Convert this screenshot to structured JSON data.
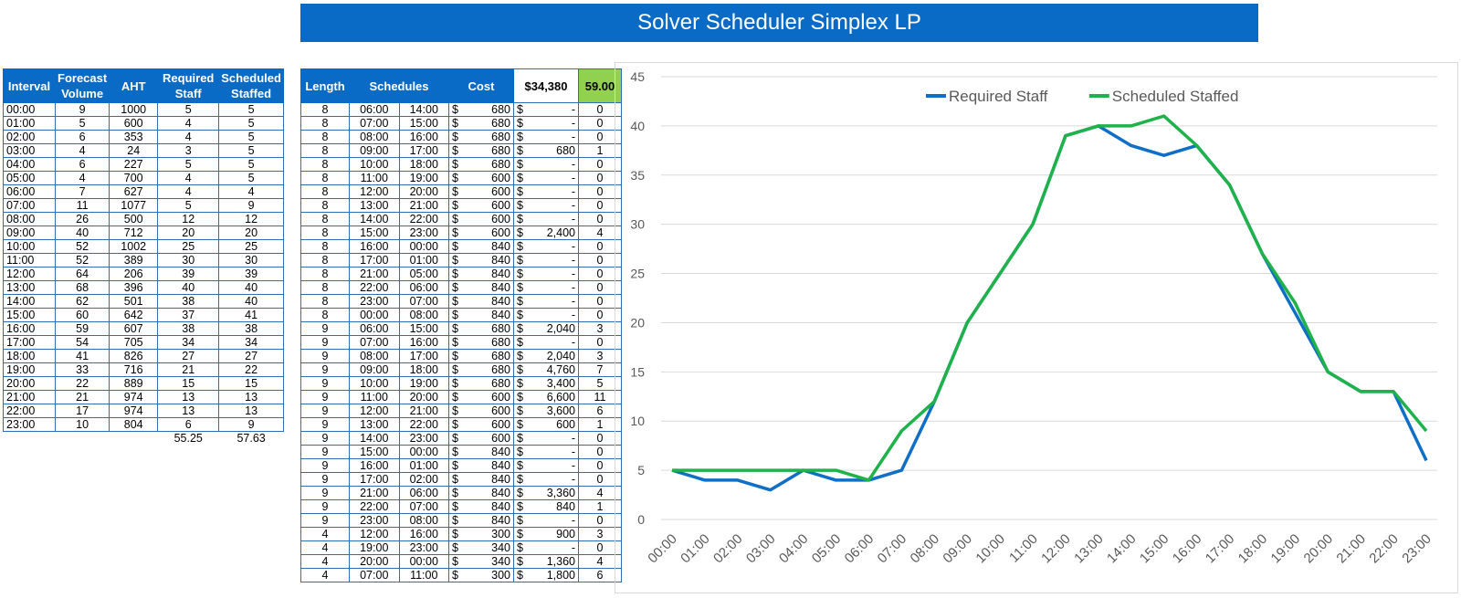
{
  "title": "Solver Scheduler Simplex LP",
  "interval_table": {
    "headers": {
      "interval": "Interval",
      "forecast": "Forecast Volume",
      "aht": "AHT",
      "required": "Required Staff",
      "scheduled": "Scheduled Staffed"
    },
    "rows": [
      [
        "00:00",
        "9",
        "1000",
        "5",
        "5"
      ],
      [
        "01:00",
        "5",
        "600",
        "4",
        "5"
      ],
      [
        "02:00",
        "6",
        "353",
        "4",
        "5"
      ],
      [
        "03:00",
        "4",
        "24",
        "3",
        "5"
      ],
      [
        "04:00",
        "6",
        "227",
        "5",
        "5"
      ],
      [
        "05:00",
        "4",
        "700",
        "4",
        "5"
      ],
      [
        "06:00",
        "7",
        "627",
        "4",
        "4"
      ],
      [
        "07:00",
        "11",
        "1077",
        "5",
        "9"
      ],
      [
        "08:00",
        "26",
        "500",
        "12",
        "12"
      ],
      [
        "09:00",
        "40",
        "712",
        "20",
        "20"
      ],
      [
        "10:00",
        "52",
        "1002",
        "25",
        "25"
      ],
      [
        "11:00",
        "52",
        "389",
        "30",
        "30"
      ],
      [
        "12:00",
        "64",
        "206",
        "39",
        "39"
      ],
      [
        "13:00",
        "68",
        "396",
        "40",
        "40"
      ],
      [
        "14:00",
        "62",
        "501",
        "38",
        "40"
      ],
      [
        "15:00",
        "60",
        "642",
        "37",
        "41"
      ],
      [
        "16:00",
        "59",
        "607",
        "38",
        "38"
      ],
      [
        "17:00",
        "54",
        "705",
        "34",
        "34"
      ],
      [
        "18:00",
        "41",
        "826",
        "27",
        "27"
      ],
      [
        "19:00",
        "33",
        "716",
        "21",
        "22"
      ],
      [
        "20:00",
        "22",
        "889",
        "15",
        "15"
      ],
      [
        "21:00",
        "21",
        "974",
        "13",
        "13"
      ],
      [
        "22:00",
        "17",
        "974",
        "13",
        "13"
      ],
      [
        "23:00",
        "10",
        "804",
        "6",
        "9"
      ]
    ],
    "totals": {
      "required": "55.25",
      "scheduled": "57.63"
    }
  },
  "schedule_table": {
    "headers": {
      "length": "Length",
      "schedules": "Schedules",
      "cost": "Cost",
      "cost_total": "$34,380",
      "staff_total": "59.00"
    },
    "rows": [
      [
        "8",
        "06:00",
        "14:00",
        "$",
        "680",
        "$",
        "-",
        "0"
      ],
      [
        "8",
        "07:00",
        "15:00",
        "$",
        "680",
        "$",
        "-",
        "0"
      ],
      [
        "8",
        "08:00",
        "16:00",
        "$",
        "680",
        "$",
        "-",
        "0"
      ],
      [
        "8",
        "09:00",
        "17:00",
        "$",
        "680",
        "$",
        "680",
        "1"
      ],
      [
        "8",
        "10:00",
        "18:00",
        "$",
        "680",
        "$",
        "-",
        "0"
      ],
      [
        "8",
        "11:00",
        "19:00",
        "$",
        "600",
        "$",
        "-",
        "0"
      ],
      [
        "8",
        "12:00",
        "20:00",
        "$",
        "600",
        "$",
        "-",
        "0"
      ],
      [
        "8",
        "13:00",
        "21:00",
        "$",
        "600",
        "$",
        "-",
        "0"
      ],
      [
        "8",
        "14:00",
        "22:00",
        "$",
        "600",
        "$",
        "-",
        "0"
      ],
      [
        "8",
        "15:00",
        "23:00",
        "$",
        "600",
        "$",
        "2,400",
        "4"
      ],
      [
        "8",
        "16:00",
        "00:00",
        "$",
        "840",
        "$",
        "-",
        "0"
      ],
      [
        "8",
        "17:00",
        "01:00",
        "$",
        "840",
        "$",
        "-",
        "0"
      ],
      [
        "8",
        "21:00",
        "05:00",
        "$",
        "840",
        "$",
        "-",
        "0"
      ],
      [
        "8",
        "22:00",
        "06:00",
        "$",
        "840",
        "$",
        "-",
        "0"
      ],
      [
        "8",
        "23:00",
        "07:00",
        "$",
        "840",
        "$",
        "-",
        "0"
      ],
      [
        "8",
        "00:00",
        "08:00",
        "$",
        "840",
        "$",
        "-",
        "0"
      ],
      [
        "9",
        "06:00",
        "15:00",
        "$",
        "680",
        "$",
        "2,040",
        "3"
      ],
      [
        "9",
        "07:00",
        "16:00",
        "$",
        "680",
        "$",
        "-",
        "0"
      ],
      [
        "9",
        "08:00",
        "17:00",
        "$",
        "680",
        "$",
        "2,040",
        "3"
      ],
      [
        "9",
        "09:00",
        "18:00",
        "$",
        "680",
        "$",
        "4,760",
        "7"
      ],
      [
        "9",
        "10:00",
        "19:00",
        "$",
        "680",
        "$",
        "3,400",
        "5"
      ],
      [
        "9",
        "11:00",
        "20:00",
        "$",
        "600",
        "$",
        "6,600",
        "11"
      ],
      [
        "9",
        "12:00",
        "21:00",
        "$",
        "600",
        "$",
        "3,600",
        "6"
      ],
      [
        "9",
        "13:00",
        "22:00",
        "$",
        "600",
        "$",
        "600",
        "1"
      ],
      [
        "9",
        "14:00",
        "23:00",
        "$",
        "600",
        "$",
        "-",
        "0"
      ],
      [
        "9",
        "15:00",
        "00:00",
        "$",
        "840",
        "$",
        "-",
        "0"
      ],
      [
        "9",
        "16:00",
        "01:00",
        "$",
        "840",
        "$",
        "-",
        "0"
      ],
      [
        "9",
        "17:00",
        "02:00",
        "$",
        "840",
        "$",
        "-",
        "0"
      ],
      [
        "9",
        "21:00",
        "06:00",
        "$",
        "840",
        "$",
        "3,360",
        "4"
      ],
      [
        "9",
        "22:00",
        "07:00",
        "$",
        "840",
        "$",
        "840",
        "1"
      ],
      [
        "9",
        "23:00",
        "08:00",
        "$",
        "840",
        "$",
        "-",
        "0"
      ],
      [
        "4",
        "12:00",
        "16:00",
        "$",
        "300",
        "$",
        "900",
        "3"
      ],
      [
        "4",
        "19:00",
        "23:00",
        "$",
        "340",
        "$",
        "-",
        "0"
      ],
      [
        "4",
        "20:00",
        "00:00",
        "$",
        "340",
        "$",
        "1,360",
        "4"
      ],
      [
        "4",
        "07:00",
        "11:00",
        "$",
        "300",
        "$",
        "1,800",
        "6"
      ]
    ]
  },
  "chart_data": {
    "type": "line",
    "categories": [
      "00:00",
      "01:00",
      "02:00",
      "03:00",
      "04:00",
      "05:00",
      "06:00",
      "07:00",
      "08:00",
      "09:00",
      "10:00",
      "11:00",
      "12:00",
      "13:00",
      "14:00",
      "15:00",
      "16:00",
      "17:00",
      "18:00",
      "19:00",
      "20:00",
      "21:00",
      "22:00",
      "23:00"
    ],
    "series": [
      {
        "name": "Required Staff",
        "color": "#0f6fc6",
        "values": [
          5,
          4,
          4,
          3,
          5,
          4,
          4,
          5,
          12,
          20,
          25,
          30,
          39,
          40,
          38,
          37,
          38,
          34,
          27,
          21,
          15,
          13,
          13,
          6
        ]
      },
      {
        "name": "Scheduled Staffed",
        "color": "#1fb24a",
        "values": [
          5,
          5,
          5,
          5,
          5,
          5,
          4,
          9,
          12,
          20,
          25,
          30,
          39,
          40,
          40,
          41,
          38,
          34,
          27,
          22,
          15,
          13,
          13,
          9
        ]
      }
    ],
    "ylim": [
      0,
      45
    ],
    "yticks": [
      0,
      5,
      10,
      15,
      20,
      25,
      30,
      35,
      40,
      45
    ],
    "grid": true,
    "legend_position": "top"
  }
}
